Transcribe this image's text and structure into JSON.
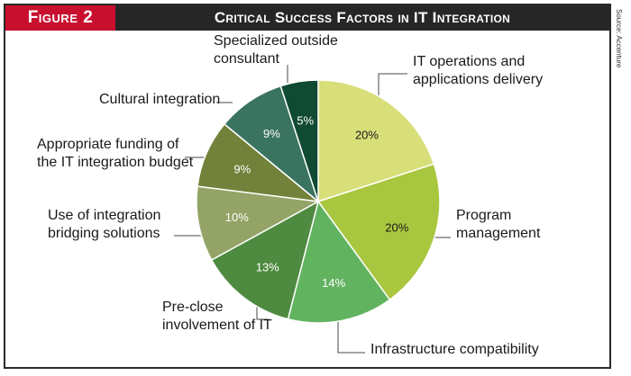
{
  "figure_label": "Figure 2",
  "source": "Source: Accenture",
  "colors": {
    "header_bg": "#262626",
    "figure_label_bg": "#c8102e",
    "leader": "#4a4a4a"
  },
  "chart_data": {
    "type": "pie",
    "title": "Critical Success Factors in IT Integration",
    "unit": "%",
    "start_angle_deg": 0,
    "direction": "clockwise",
    "slices": [
      {
        "label": "IT operations and applications delivery",
        "label_lines": [
          "IT operations and",
          "applications delivery"
        ],
        "value": 20,
        "display": "20%",
        "color": "#d8de78"
      },
      {
        "label": "Program management",
        "label_lines": [
          "Program",
          "management"
        ],
        "value": 20,
        "display": "20%",
        "color": "#a9c63f"
      },
      {
        "label": "Infrastructure compatibility",
        "label_lines": [
          "Infrastructure compatibility"
        ],
        "value": 14,
        "display": "14%",
        "color": "#62b360"
      },
      {
        "label": "Pre-close involvement of IT",
        "label_lines": [
          "Pre-close",
          "involvement of IT"
        ],
        "value": 13,
        "display": "13%",
        "color": "#4e8a3f"
      },
      {
        "label": "Use of integration bridging solutions",
        "label_lines": [
          "Use of integration",
          "bridging solutions"
        ],
        "value": 10,
        "display": "10%",
        "color": "#93a466"
      },
      {
        "label": "Appropriate funding of the IT integration budget",
        "label_lines": [
          "Appropriate funding of",
          "the IT integration budget"
        ],
        "value": 9,
        "display": "9%",
        "color": "#73823a"
      },
      {
        "label": "Cultural integration",
        "label_lines": [
          "Cultural integration"
        ],
        "value": 9,
        "display": "9%",
        "color": "#3a7460"
      },
      {
        "label": "Specialized outside consultant",
        "label_lines": [
          "Specialized outside",
          "consultant"
        ],
        "value": 5,
        "display": "5%",
        "color": "#104a33"
      }
    ]
  }
}
